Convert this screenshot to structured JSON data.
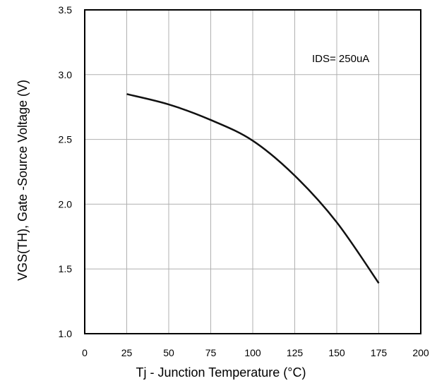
{
  "chart_data": {
    "type": "line",
    "xlabel": "Tj - Junction Temperature (°C)",
    "ylabel": "VGS(TH), Gate -Source Voltage (V)",
    "xlim": [
      0,
      200
    ],
    "ylim": [
      1.0,
      3.5
    ],
    "x_ticks": [
      "0",
      "25",
      "50",
      "75",
      "100",
      "125",
      "150",
      "175",
      "200"
    ],
    "y_ticks": [
      "1.0",
      "1.5",
      "2.0",
      "2.5",
      "3.0",
      "3.5"
    ],
    "grid": true,
    "annotation": "IDS= 250uA",
    "series": [
      {
        "x": [
          25,
          50,
          75,
          100,
          125,
          150,
          175
        ],
        "y": [
          2.85,
          2.77,
          2.65,
          2.49,
          2.22,
          1.86,
          1.39
        ]
      }
    ],
    "line_color": "#111111",
    "grid_color": "#b0b0b0"
  }
}
